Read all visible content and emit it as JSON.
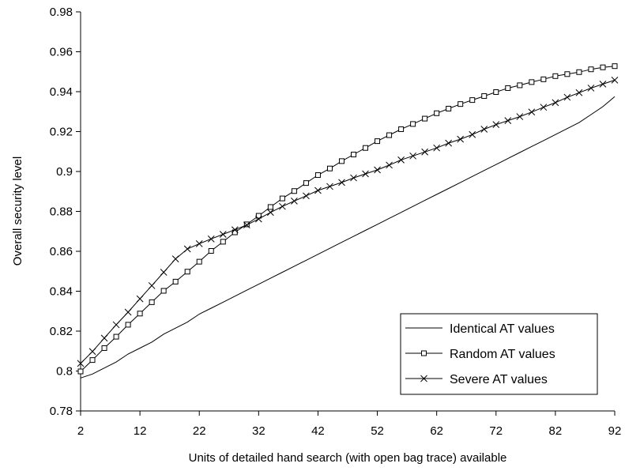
{
  "chart_data": {
    "type": "line",
    "title": "",
    "xlabel": "Units of detailed hand search (with open bag trace) available",
    "ylabel": "Overall security level",
    "xlim": [
      2,
      92
    ],
    "ylim": [
      0.78,
      0.98
    ],
    "xticks": [
      2,
      12,
      22,
      32,
      42,
      52,
      62,
      72,
      82,
      92
    ],
    "xtick_labels": [
      "2",
      "12",
      "22",
      "32",
      "42",
      "52",
      "62",
      "72",
      "82",
      "92"
    ],
    "yticks": [
      0.78,
      0.8,
      0.82,
      0.84,
      0.86,
      0.88,
      0.9,
      0.92,
      0.94,
      0.96,
      0.98
    ],
    "ytick_labels": [
      "0.78",
      "0.8",
      "0.82",
      "0.84",
      "0.86",
      "0.88",
      "0.9",
      "0.92",
      "0.94",
      "0.96",
      "0.98"
    ],
    "grid": false,
    "legend_position": "bottom-right",
    "x": [
      2,
      4,
      6,
      8,
      10,
      12,
      14,
      16,
      18,
      20,
      22,
      24,
      26,
      28,
      30,
      32,
      34,
      36,
      38,
      40,
      42,
      44,
      46,
      48,
      50,
      52,
      54,
      56,
      58,
      60,
      62,
      64,
      66,
      68,
      70,
      72,
      74,
      76,
      78,
      80,
      82,
      84,
      86,
      88,
      90,
      92
    ],
    "series": [
      {
        "name": "Identical AT values",
        "marker": "none",
        "color": "#000000",
        "values": [
          0.7965,
          0.7985,
          0.8015,
          0.8045,
          0.8085,
          0.8115,
          0.8145,
          0.8185,
          0.8215,
          0.8245,
          0.8285,
          0.8315,
          0.8345,
          0.8375,
          0.8405,
          0.8435,
          0.8465,
          0.8495,
          0.8525,
          0.8555,
          0.8585,
          0.8615,
          0.8645,
          0.8675,
          0.8705,
          0.8735,
          0.8765,
          0.8795,
          0.8825,
          0.8855,
          0.8885,
          0.8915,
          0.8945,
          0.8975,
          0.9005,
          0.9035,
          0.9065,
          0.9095,
          0.9125,
          0.9155,
          0.9185,
          0.9215,
          0.9245,
          0.9285,
          0.9325,
          0.9375
        ]
      },
      {
        "name": "Random AT values",
        "marker": "square",
        "color": "#000000",
        "values": [
          0.7998,
          0.8055,
          0.8115,
          0.8172,
          0.8232,
          0.8288,
          0.8345,
          0.8402,
          0.8448,
          0.8498,
          0.8548,
          0.8602,
          0.8648,
          0.8695,
          0.8735,
          0.8778,
          0.8822,
          0.8865,
          0.8902,
          0.8942,
          0.8982,
          0.9015,
          0.9052,
          0.9085,
          0.9118,
          0.9152,
          0.9182,
          0.9212,
          0.9238,
          0.9265,
          0.9292,
          0.9315,
          0.9338,
          0.9358,
          0.9378,
          0.9398,
          0.9418,
          0.9432,
          0.9448,
          0.9462,
          0.9478,
          0.9488,
          0.9498,
          0.9512,
          0.9522,
          0.9528
        ]
      },
      {
        "name": "Severe AT values",
        "marker": "x",
        "color": "#000000",
        "values": [
          0.8038,
          0.8098,
          0.8165,
          0.8232,
          0.8295,
          0.8362,
          0.8428,
          0.8495,
          0.8562,
          0.8612,
          0.8638,
          0.8662,
          0.8685,
          0.8708,
          0.8732,
          0.8762,
          0.8795,
          0.8825,
          0.8852,
          0.8878,
          0.8905,
          0.8925,
          0.8945,
          0.8968,
          0.8988,
          0.9008,
          0.9032,
          0.9058,
          0.9078,
          0.9098,
          0.9118,
          0.9142,
          0.9162,
          0.9185,
          0.9212,
          0.9235,
          0.9255,
          0.9275,
          0.9298,
          0.9322,
          0.9345,
          0.9372,
          0.9395,
          0.9418,
          0.9438,
          0.9458
        ]
      }
    ]
  }
}
